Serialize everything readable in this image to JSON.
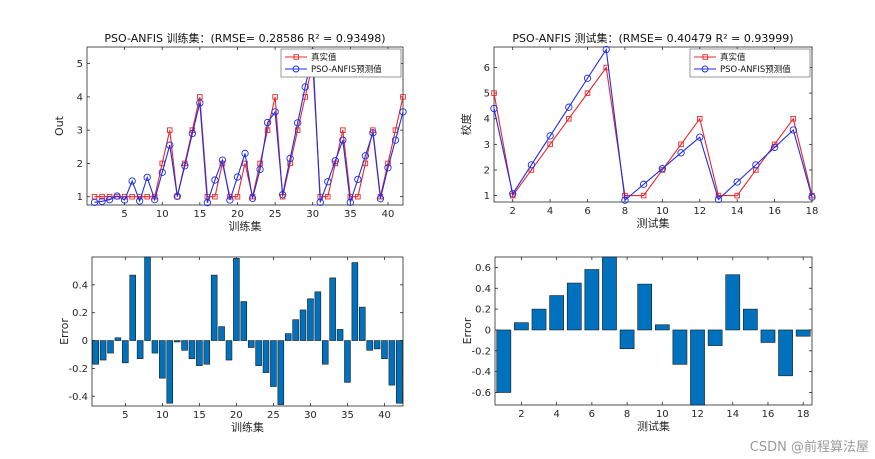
{
  "credit": "CSDN @前程算法屋",
  "colors": {
    "actual": "#e8282b",
    "predicted": "#1f2ee6",
    "bar": "#0072bd",
    "axis": "#262626"
  },
  "chart_data": [
    {
      "id": "train-line",
      "type": "line",
      "title": "PSO-ANFIS 训练集：(RMSE= 0.28586 R² = 0.93498)",
      "xlabel": "训练集",
      "ylabel": "Out",
      "xlim": [
        0,
        42
      ],
      "ylim": [
        0.75,
        5.5
      ],
      "xticks": [
        5,
        10,
        15,
        20,
        25,
        30,
        35,
        40
      ],
      "yticks": [
        1,
        2,
        3,
        4,
        5
      ],
      "legend": "top-right",
      "series": [
        {
          "name": "真实值",
          "marker": "square",
          "values": [
            1,
            1,
            1,
            1,
            1,
            1,
            1,
            1,
            1,
            2,
            3,
            1,
            2,
            3,
            4,
            1,
            1,
            2,
            1,
            1,
            2,
            1,
            2,
            3,
            4,
            1,
            2,
            3,
            4,
            5,
            1,
            1,
            2,
            3,
            1,
            1,
            2,
            3,
            1,
            2,
            3,
            4
          ]
        },
        {
          "name": "PSO-ANFIS预测值",
          "marker": "circle",
          "values": [
            0.83,
            0.86,
            0.91,
            1.02,
            0.9,
            1.47,
            0.87,
            1.58,
            0.91,
            1.73,
            2.55,
            1.01,
            1.93,
            2.9,
            3.82,
            0.82,
            1.5,
            2.1,
            0.9,
            1.59,
            2.3,
            0.95,
            1.82,
            3.23,
            3.55,
            1.06,
            2.15,
            3.22,
            4.3,
            5.35,
            0.83,
            1.45,
            2.08,
            2.7,
            0.83,
            1.52,
            2.23,
            2.92,
            0.94,
            1.87,
            2.7,
            3.55
          ]
        }
      ]
    },
    {
      "id": "test-line",
      "type": "line",
      "title": "PSO-ANFIS 测试集：(RMSE= 0.40479 R² = 0.93999)",
      "xlabel": "测试集",
      "ylabel": "校度",
      "xlim": [
        1,
        18
      ],
      "ylim": [
        0.75,
        6.8
      ],
      "xticks": [
        2,
        4,
        6,
        8,
        10,
        12,
        14,
        16,
        18
      ],
      "yticks": [
        1,
        2,
        3,
        4,
        5,
        6
      ],
      "legend": "top-right",
      "series": [
        {
          "name": "真实值",
          "marker": "square",
          "values": [
            5,
            1,
            2,
            3,
            4,
            5,
            6,
            1,
            1,
            2,
            3,
            4,
            1,
            1,
            2,
            3,
            4,
            1
          ]
        },
        {
          "name": "PSO-ANFIS预测值",
          "marker": "circle",
          "values": [
            4.4,
            1.07,
            2.2,
            3.33,
            4.45,
            5.58,
            6.7,
            0.82,
            1.44,
            2.05,
            2.67,
            3.28,
            0.85,
            1.53,
            2.2,
            2.88,
            3.56,
            0.94
          ]
        }
      ]
    },
    {
      "id": "train-error",
      "type": "bar",
      "title": "",
      "xlabel": "训练集",
      "ylabel": "Error",
      "xlim": [
        0.5,
        42.5
      ],
      "ylim": [
        -0.47,
        0.6
      ],
      "xticks": [
        5,
        10,
        15,
        20,
        25,
        30,
        35,
        40
      ],
      "yticks": [
        -0.4,
        -0.2,
        0,
        0.2,
        0.4
      ],
      "values": [
        -0.17,
        -0.14,
        -0.09,
        0.02,
        -0.16,
        0.47,
        -0.13,
        0.6,
        -0.09,
        -0.27,
        -0.45,
        -0.01,
        -0.07,
        -0.13,
        -0.18,
        -0.17,
        0.47,
        0.1,
        -0.14,
        0.59,
        0.28,
        -0.05,
        -0.18,
        -0.23,
        -0.33,
        -0.46,
        0.05,
        0.15,
        0.22,
        0.3,
        0.35,
        -0.17,
        0.45,
        0.08,
        -0.3,
        0.56,
        0.24,
        -0.07,
        -0.06,
        -0.13,
        -0.32,
        -0.45
      ]
    },
    {
      "id": "test-error",
      "type": "bar",
      "title": "",
      "xlabel": "测试集",
      "ylabel": "Error",
      "xlim": [
        0.5,
        18.5
      ],
      "ylim": [
        -0.72,
        0.7
      ],
      "xticks": [
        2,
        4,
        6,
        8,
        10,
        12,
        14,
        16,
        18
      ],
      "yticks": [
        -0.6,
        -0.4,
        -0.2,
        0,
        0.2,
        0.4,
        0.6
      ],
      "values": [
        -0.6,
        0.07,
        0.2,
        0.33,
        0.45,
        0.58,
        0.7,
        -0.18,
        0.44,
        0.05,
        -0.33,
        -0.72,
        -0.15,
        0.53,
        0.2,
        -0.12,
        -0.44,
        -0.06
      ]
    }
  ]
}
